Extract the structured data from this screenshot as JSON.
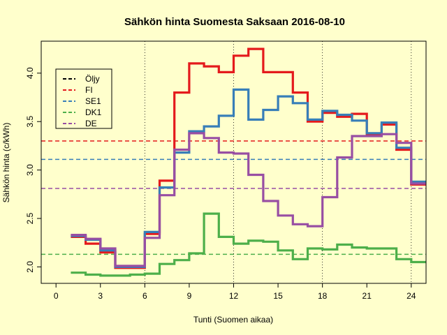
{
  "chart_data": {
    "type": "line",
    "title": "Sähkön hinta Suomesta Saksaan 2016-08-10",
    "xlabel": "Tunti (Suomen aikaa)",
    "ylabel": "Sähkön hinta (c/kWh)",
    "xlim": [
      -1,
      25
    ],
    "ylim": [
      1.83,
      4.33
    ],
    "xticks": [
      0,
      3,
      6,
      9,
      12,
      15,
      18,
      21,
      24
    ],
    "yticks": [
      2.0,
      2.5,
      3.0,
      3.5,
      4.0
    ],
    "ytick_labels": [
      "2.0",
      "2.5",
      "3.0",
      "3.5",
      "4.0"
    ],
    "vlines": [
      6,
      12,
      18,
      24
    ],
    "legend_position": "top-left",
    "legend": [
      {
        "label": "Öljy",
        "color": "#000000"
      },
      {
        "label": "FI",
        "color": "#E41A1C"
      },
      {
        "label": "SE1",
        "color": "#377EB8"
      },
      {
        "label": "DK1",
        "color": "#4DAF4A"
      },
      {
        "label": "DE",
        "color": "#984EA3"
      }
    ],
    "series": [
      {
        "name": "FI",
        "color": "#E41A1C",
        "average": 3.3,
        "values": [
          2.31,
          2.24,
          2.15,
          1.99,
          1.99,
          2.34,
          2.89,
          3.8,
          4.1,
          4.07,
          4.01,
          4.18,
          4.25,
          4.01,
          4.01,
          3.8,
          3.5,
          3.59,
          3.55,
          3.58,
          3.36,
          3.47,
          3.21,
          2.85
        ]
      },
      {
        "name": "SE1",
        "color": "#377EB8",
        "average": 3.11,
        "values": [
          2.32,
          2.28,
          2.17,
          2.0,
          2.0,
          2.36,
          2.82,
          3.18,
          3.4,
          3.45,
          3.56,
          3.83,
          3.52,
          3.62,
          3.76,
          3.69,
          3.52,
          3.61,
          3.57,
          3.51,
          3.38,
          3.49,
          3.23,
          2.88
        ]
      },
      {
        "name": "DK1",
        "color": "#4DAF4A",
        "average": 2.13,
        "values": [
          1.94,
          1.92,
          1.91,
          1.91,
          1.92,
          1.93,
          2.03,
          2.07,
          2.14,
          2.55,
          2.31,
          2.24,
          2.27,
          2.26,
          2.17,
          2.08,
          2.19,
          2.18,
          2.23,
          2.2,
          2.19,
          2.19,
          2.08,
          2.05
        ]
      },
      {
        "name": "DE",
        "color": "#984EA3",
        "average": 2.81,
        "values": [
          2.33,
          2.29,
          2.19,
          2.01,
          2.01,
          2.3,
          2.74,
          3.21,
          3.38,
          3.33,
          3.18,
          3.17,
          2.95,
          2.68,
          2.53,
          2.44,
          2.42,
          2.72,
          3.13,
          3.35,
          3.35,
          3.37,
          3.28,
          2.86
        ]
      }
    ]
  }
}
